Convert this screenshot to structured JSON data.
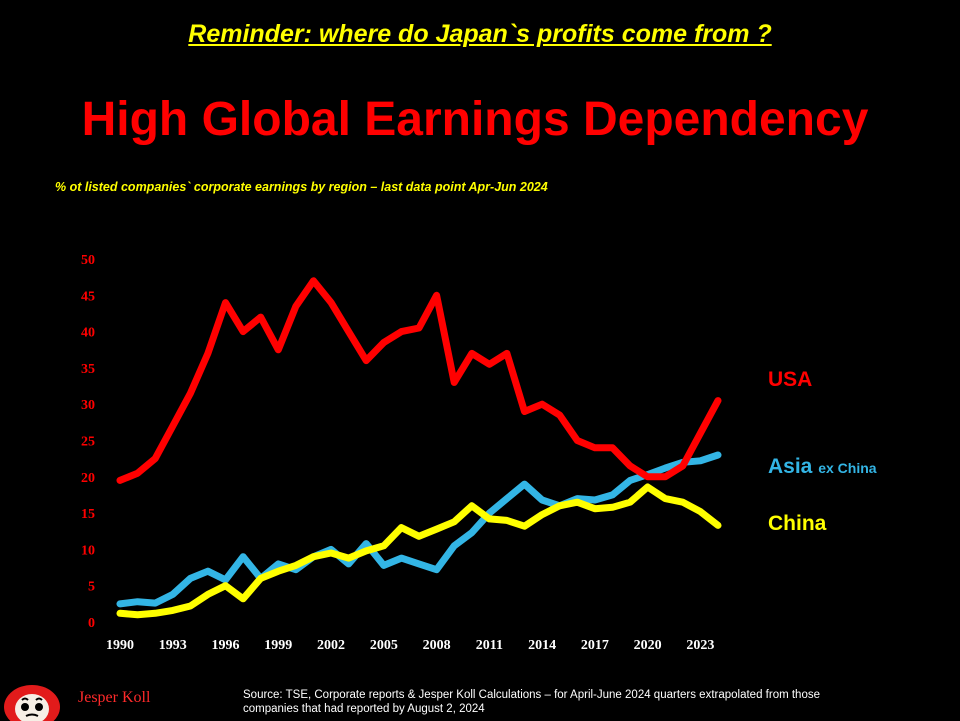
{
  "header": {
    "reminder": "Reminder: where do Japan`s profits come from ?",
    "title": "High Global Earnings Dependency",
    "subtitle": "% ot listed companies` corporate earnings by region – last data point Apr-Jun 2024"
  },
  "footer": {
    "author": "Jesper Koll",
    "source_line1": "Source: TSE, Corporate reports  & Jesper Koll Calculations – for April-June 2024 quarters extrapolated from those",
    "source_line2": "companies  that had reported by August 2, 2024"
  },
  "colors": {
    "usa": "#ff0000",
    "asia": "#33b5e5",
    "china": "#ffff00",
    "axis_text": "#ff0000",
    "x_tick_text": "#ffffff"
  },
  "labels": {
    "usa": "USA",
    "asia": "Asia",
    "asia_suffix": "ex China",
    "china": "China"
  },
  "chart_data": {
    "type": "line",
    "title": "High Global Earnings Dependency",
    "xlabel": "",
    "ylabel": "",
    "xlim": [
      1990,
      2024
    ],
    "ylim": [
      0,
      50
    ],
    "yticks": [
      0,
      5,
      10,
      15,
      20,
      25,
      30,
      35,
      40,
      45,
      50
    ],
    "xticks": [
      1990,
      1993,
      1996,
      1999,
      2002,
      2005,
      2008,
      2011,
      2014,
      2017,
      2020,
      2023
    ],
    "grid": false,
    "legend": "right-side labels",
    "x": [
      1990,
      1991,
      1992,
      1993,
      1994,
      1995,
      1996,
      1997,
      1998,
      1999,
      2000,
      2001,
      2002,
      2003,
      2004,
      2005,
      2006,
      2007,
      2008,
      2009,
      2010,
      2011,
      2012,
      2013,
      2014,
      2015,
      2016,
      2017,
      2018,
      2019,
      2020,
      2021,
      2022,
      2023,
      2024
    ],
    "series": [
      {
        "name": "USA",
        "values": [
          19.5,
          20.5,
          22.5,
          27,
          31.5,
          37,
          44,
          40,
          42,
          37.5,
          43.5,
          47,
          44,
          40,
          36,
          38.5,
          40,
          40.5,
          45,
          33,
          37,
          35.5,
          37,
          29,
          30,
          28.5,
          25,
          24,
          24,
          21.5,
          20,
          20,
          21.5,
          26,
          30.5
        ]
      },
      {
        "name": "Asia ex China",
        "values": [
          2.5,
          2.8,
          2.6,
          3.8,
          6,
          7,
          5.8,
          9,
          6,
          8,
          7.2,
          9,
          10,
          8,
          10.8,
          7.8,
          8.8,
          8,
          7.2,
          10.5,
          12.3,
          15,
          17,
          19,
          16.8,
          16,
          17,
          16.8,
          17.5,
          19.5,
          20.3,
          21.2,
          22,
          22.2,
          23
        ]
      },
      {
        "name": "China",
        "values": [
          1.2,
          1,
          1.2,
          1.6,
          2.2,
          3.8,
          5,
          3.2,
          6,
          7,
          7.8,
          9,
          9.5,
          8.8,
          9.8,
          10.5,
          13,
          11.8,
          12.8,
          13.8,
          16,
          14.2,
          14,
          13.2,
          14.8,
          16,
          16.5,
          15.6,
          15.8,
          16.5,
          18.6,
          17,
          16.5,
          15.2,
          13.3
        ]
      }
    ]
  }
}
